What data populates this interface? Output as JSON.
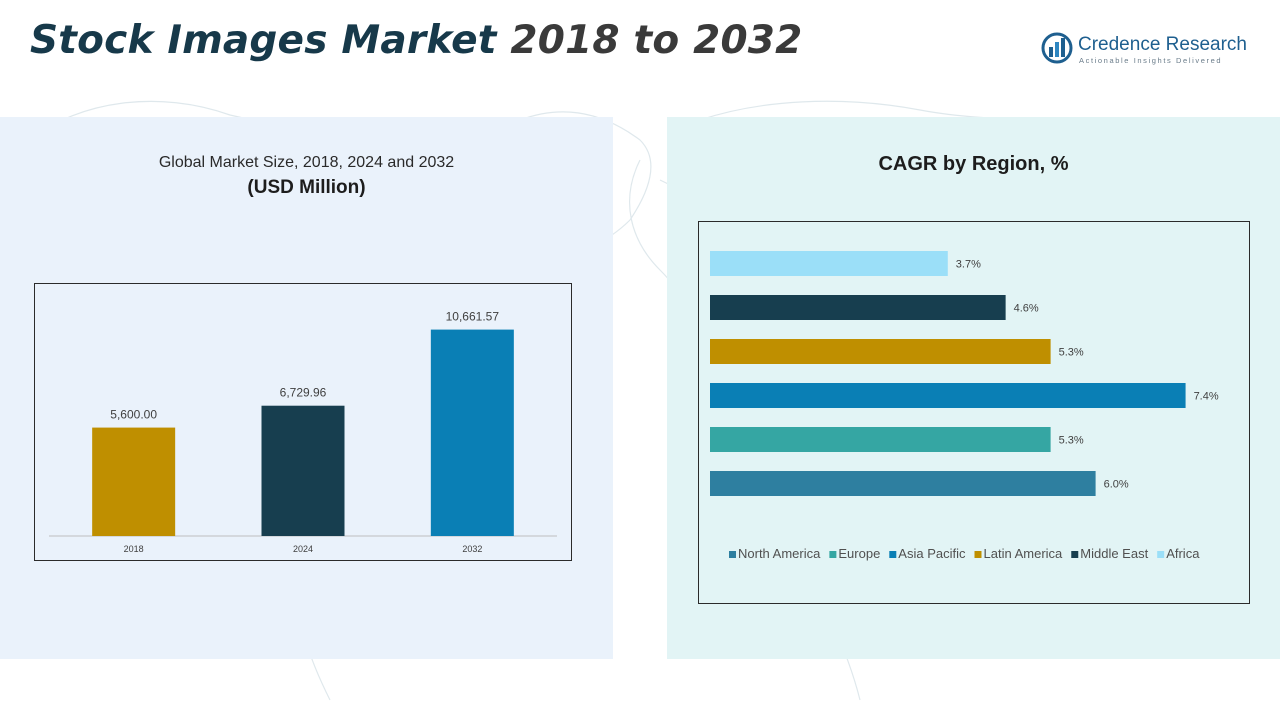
{
  "header": {
    "title_part1": "Stock Images Market",
    "title_part2": "2018 to 2032"
  },
  "brand": {
    "name": "Credence Research",
    "tagline": "Actionable Insights Delivered"
  },
  "left_panel": {
    "subtitle": "Global Market Size, 2018, 2024 and 2032",
    "unit": "(USD Million)"
  },
  "right_panel": {
    "title": "CAGR by Region, %"
  },
  "chart_data": [
    {
      "type": "bar",
      "title": "Global Market Size, 2018, 2024 and 2032",
      "ylabel": "(USD Million)",
      "categories": [
        "2018",
        "2024",
        "2032"
      ],
      "values": [
        5600.0,
        6729.96,
        10661.57
      ],
      "data_labels": [
        "5,600.00",
        "6,729.96",
        "10,661.57"
      ],
      "colors": [
        "#bf8f00",
        "#173e4f",
        "#0a7fb5"
      ],
      "ylim": [
        0,
        12500
      ],
      "grid": false
    },
    {
      "type": "bar",
      "orientation": "horizontal",
      "title": "CAGR by Region, %",
      "series": [
        {
          "name": "North America",
          "value": 6.0,
          "label": "6.0%",
          "color": "#2e7fa0"
        },
        {
          "name": "Europe",
          "value": 5.3,
          "label": "5.3%",
          "color": "#35a6a3"
        },
        {
          "name": "Asia Pacific",
          "value": 7.4,
          "label": "7.4%",
          "color": "#0a7fb5"
        },
        {
          "name": "Latin America",
          "value": 5.3,
          "label": "5.3%",
          "color": "#bf8f00"
        },
        {
          "name": "Middle East",
          "value": 4.6,
          "label": "4.6%",
          "color": "#173e4f"
        },
        {
          "name": "Africa",
          "value": 3.7,
          "label": "3.7%",
          "color": "#9bdff8"
        }
      ],
      "xlim": [
        0,
        7.5
      ],
      "legend": "bottom",
      "grid": false
    }
  ]
}
